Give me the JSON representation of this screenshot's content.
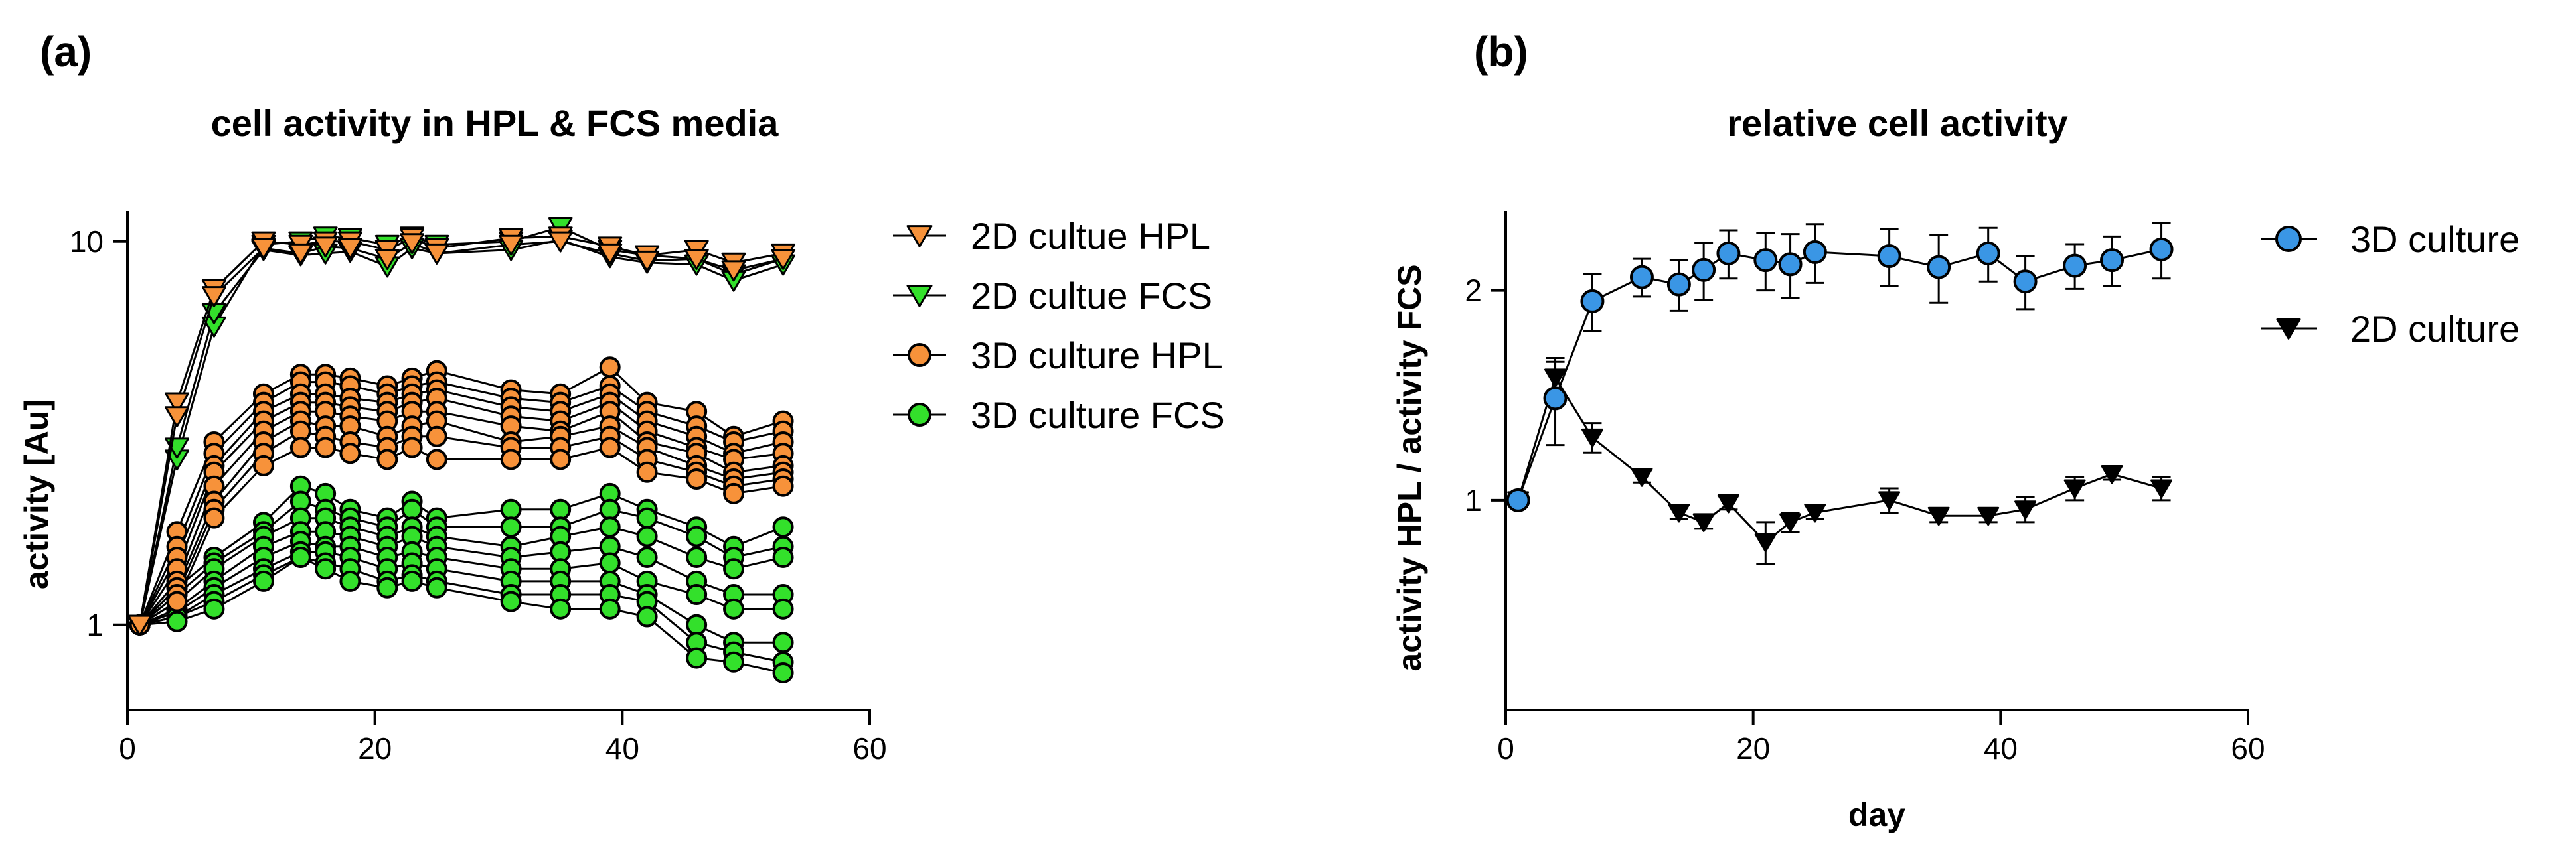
{
  "chart_data": [
    {
      "panel_label": "(a)",
      "type": "line",
      "title": "cell activity in HPL & FCS media",
      "xlabel": "",
      "ylabel": "activity  [Au]",
      "yscale": "log",
      "xlim": [
        0,
        60
      ],
      "ylim": [
        0.6,
        12
      ],
      "xticks": [
        "0",
        "20",
        "40",
        "60"
      ],
      "yticks": [
        {
          "value": 1,
          "label": "1"
        },
        {
          "value": 10,
          "label": "10"
        }
      ],
      "legend_position": "right",
      "x": [
        1,
        4,
        7,
        11,
        14,
        16,
        18,
        21,
        23,
        25,
        31,
        35,
        39,
        42,
        46,
        49,
        53
      ],
      "groups": [
        {
          "name": "2D cultue HPL",
          "marker": "triangle-down",
          "color": "#F7923A",
          "replicates": [
            [
              1,
              3.8,
              7.5,
              10.0,
              9.8,
              10.0,
              10.0,
              9.5,
              10.2,
              9.6,
              10.2,
              10.3,
              9.7,
              9.2,
              9.5,
              8.8,
              9.3
            ],
            [
              1,
              3.5,
              7.2,
              9.6,
              9.3,
              9.7,
              9.6,
              9.0,
              9.9,
              9.3,
              9.8,
              10.0,
              9.3,
              8.9,
              9.0,
              8.4,
              9.0
            ]
          ]
        },
        {
          "name": "2D cultue FCS",
          "marker": "triangle-down",
          "color": "#33E02B",
          "replicates": [
            [
              1,
              2.7,
              6.0,
              9.8,
              10.0,
              10.3,
              10.2,
              9.8,
              10.3,
              9.8,
              10.0,
              10.9,
              9.5,
              9.2,
              9.0,
              8.2,
              9.0
            ],
            [
              1,
              2.9,
              6.5,
              9.5,
              9.2,
              9.3,
              9.4,
              8.6,
              9.6,
              9.3,
              9.5,
              10.1,
              9.1,
              8.8,
              8.7,
              7.9,
              8.7
            ]
          ]
        },
        {
          "name": "3D culture HPL",
          "marker": "circle",
          "color": "#F7923A",
          "replicates": [
            [
              1,
              1.75,
              3.0,
              4.0,
              4.5,
              4.5,
              4.4,
              4.2,
              4.4,
              4.6,
              4.1,
              4.0,
              4.7,
              3.8,
              3.6,
              3.1,
              3.4
            ],
            [
              1,
              1.6,
              2.8,
              3.8,
              4.3,
              4.3,
              4.2,
              4.0,
              4.2,
              4.3,
              3.9,
              3.8,
              4.2,
              3.6,
              3.3,
              3.0,
              3.2
            ],
            [
              1,
              1.5,
              2.6,
              3.6,
              4.0,
              4.0,
              3.9,
              3.8,
              4.0,
              4.1,
              3.7,
              3.6,
              4.0,
              3.4,
              3.1,
              2.8,
              3.0
            ],
            [
              1,
              1.4,
              2.5,
              3.4,
              3.8,
              3.8,
              3.7,
              3.6,
              3.8,
              3.9,
              3.5,
              3.4,
              3.8,
              3.2,
              2.9,
              2.7,
              2.8
            ],
            [
              1,
              1.3,
              2.3,
              3.2,
              3.6,
              3.6,
              3.5,
              3.4,
              3.6,
              3.6,
              3.3,
              3.2,
              3.6,
              3.0,
              2.8,
              2.5,
              2.6
            ],
            [
              1,
              1.25,
              2.1,
              3.0,
              3.4,
              3.3,
              3.3,
              3.1,
              3.3,
              3.4,
              3.0,
              3.1,
              3.3,
              2.9,
              2.6,
              2.4,
              2.5
            ],
            [
              1,
              1.2,
              2.0,
              2.8,
              3.2,
              3.1,
              3.0,
              2.9,
              3.1,
              3.1,
              2.9,
              2.9,
              3.1,
              2.7,
              2.5,
              2.3,
              2.4
            ],
            [
              1,
              1.15,
              1.9,
              2.6,
              2.9,
              2.9,
              2.8,
              2.7,
              2.9,
              2.7,
              2.7,
              2.7,
              2.9,
              2.5,
              2.4,
              2.2,
              2.3
            ]
          ]
        },
        {
          "name": "3D culture FCS",
          "marker": "circle",
          "color": "#33E02B",
          "replicates": [
            [
              1,
              1.25,
              1.5,
              1.85,
              2.3,
              2.2,
              2.0,
              1.9,
              2.1,
              1.9,
              2.0,
              2.0,
              2.2,
              2.0,
              1.8,
              1.6,
              1.8
            ],
            [
              1,
              1.2,
              1.45,
              1.75,
              2.1,
              2.0,
              1.9,
              1.8,
              2.0,
              1.8,
              1.8,
              1.8,
              2.0,
              1.9,
              1.7,
              1.5,
              1.6
            ],
            [
              1,
              1.15,
              1.4,
              1.7,
              1.9,
              1.9,
              1.8,
              1.7,
              1.8,
              1.7,
              1.6,
              1.7,
              1.8,
              1.7,
              1.5,
              1.4,
              1.5
            ],
            [
              1,
              1.1,
              1.3,
              1.6,
              1.75,
              1.75,
              1.7,
              1.6,
              1.7,
              1.6,
              1.5,
              1.55,
              1.6,
              1.5,
              1.3,
              1.2,
              1.2
            ],
            [
              1,
              1.08,
              1.25,
              1.5,
              1.65,
              1.6,
              1.6,
              1.5,
              1.55,
              1.5,
              1.4,
              1.4,
              1.45,
              1.3,
              1.2,
              1.1,
              1.1
            ],
            [
              1,
              1.05,
              1.2,
              1.4,
              1.55,
              1.55,
              1.5,
              1.4,
              1.45,
              1.4,
              1.3,
              1.3,
              1.3,
              1.2,
              1.0,
              0.9,
              0.9
            ],
            [
              1,
              1.05,
              1.15,
              1.35,
              1.5,
              1.45,
              1.4,
              1.3,
              1.35,
              1.3,
              1.2,
              1.2,
              1.2,
              1.15,
              0.9,
              0.85,
              0.8
            ],
            [
              1,
              1.02,
              1.1,
              1.3,
              1.5,
              1.4,
              1.3,
              1.25,
              1.3,
              1.25,
              1.15,
              1.1,
              1.1,
              1.05,
              0.82,
              0.8,
              0.75
            ]
          ]
        }
      ]
    },
    {
      "panel_label": "(b)",
      "type": "line",
      "title": "relative cell activity",
      "xlabel": "day",
      "ylabel": "activity  HPL / activity FCS",
      "yscale": "log",
      "xlim": [
        0,
        60
      ],
      "ylim": [
        0.5,
        2.6
      ],
      "xticks": [
        "0",
        "20",
        "40",
        "60"
      ],
      "yticks": [
        {
          "value": 1,
          "label": "1"
        },
        {
          "value": 2,
          "label": "2"
        }
      ],
      "legend_position": "right",
      "series": [
        {
          "name": "3D culture",
          "marker": "circle",
          "color": "#3A96E5",
          "x": [
            1,
            4,
            7,
            11,
            14,
            16,
            18,
            21,
            23,
            25,
            31,
            35,
            39,
            42,
            46,
            49,
            53
          ],
          "y": [
            1.0,
            1.4,
            1.93,
            2.09,
            2.04,
            2.14,
            2.26,
            2.21,
            2.18,
            2.27,
            2.24,
            2.16,
            2.26,
            2.06,
            2.17,
            2.21,
            2.29
          ],
          "err": [
            0.0,
            0.2,
            0.18,
            0.13,
            0.17,
            0.2,
            0.18,
            0.21,
            0.23,
            0.22,
            0.21,
            0.24,
            0.2,
            0.18,
            0.16,
            0.18,
            0.21
          ]
        },
        {
          "name": "2D culture",
          "marker": "triangle-down",
          "color": "#000000",
          "x": [
            1,
            4,
            7,
            11,
            14,
            16,
            18,
            21,
            23,
            25,
            31,
            35,
            39,
            42,
            46,
            49,
            53
          ],
          "y": [
            1.0,
            1.5,
            1.23,
            1.08,
            0.96,
            0.93,
            0.99,
            0.87,
            0.93,
            0.96,
            1.0,
            0.95,
            0.95,
            0.97,
            1.04,
            1.09,
            1.04
          ],
          "err": [
            0.0,
            0.08,
            0.06,
            0.02,
            0.02,
            0.02,
            0.02,
            0.06,
            0.03,
            0.02,
            0.04,
            0.02,
            0.02,
            0.04,
            0.04,
            0.02,
            0.04
          ]
        }
      ]
    }
  ]
}
